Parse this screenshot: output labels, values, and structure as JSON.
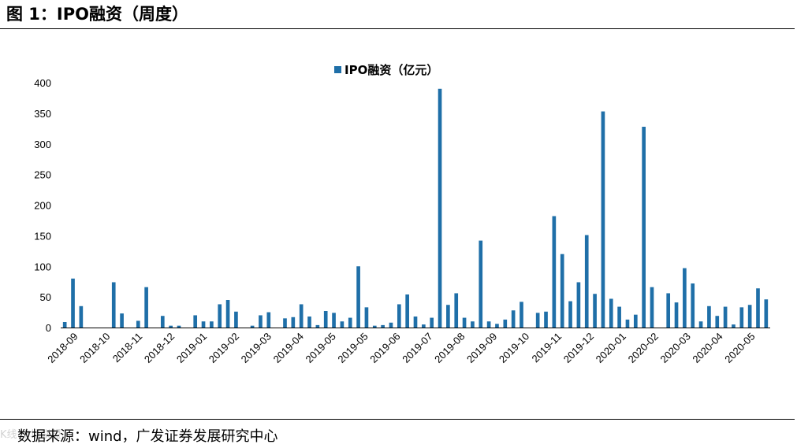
{
  "figure": {
    "title": "图 1：IPO融资（周度）",
    "source": "数据来源：wind，广发证券发展研究中心",
    "watermark": "K线 市场联盟"
  },
  "colors": {
    "bar": "#1f6fa8",
    "axis": "#000000"
  },
  "chart_data": {
    "type": "bar",
    "legend": {
      "position": "top-center"
    },
    "ylim": [
      0,
      400
    ],
    "yticks": [
      0,
      50,
      100,
      150,
      200,
      250,
      300,
      350,
      400
    ],
    "grid": false,
    "xlabel": "",
    "ylabel": "",
    "x_tick_labels": [
      "2018-09",
      "2018-10",
      "2018-11",
      "2018-12",
      "2019-01",
      "2019-02",
      "2019-03",
      "2019-04",
      "2019-05",
      "2019-05",
      "2019-06",
      "2019-07",
      "2019-08",
      "2019-09",
      "2019-10",
      "2019-11",
      "2019-12",
      "2020-01",
      "2020-02",
      "2020-03",
      "2020-04",
      "2020-05"
    ],
    "series": [
      {
        "name": "IPO融资（亿元）",
        "values": [
          9,
          80,
          35,
          0,
          0,
          0,
          74,
          23,
          0,
          11,
          66,
          0,
          19,
          3,
          3,
          0,
          20,
          10,
          10,
          38,
          45,
          26,
          0,
          3,
          20,
          25,
          0,
          15,
          17,
          38,
          18,
          4,
          27,
          24,
          10,
          16,
          100,
          33,
          3,
          4,
          8,
          38,
          54,
          18,
          5,
          16,
          390,
          37,
          56,
          16,
          10,
          142,
          10,
          6,
          13,
          28,
          42,
          0,
          24,
          26,
          182,
          120,
          43,
          74,
          151,
          55,
          353,
          47,
          34,
          13,
          21,
          328,
          66,
          0,
          56,
          41,
          97,
          72,
          10,
          35,
          19,
          34,
          5,
          33,
          37,
          64,
          46
        ]
      }
    ]
  }
}
